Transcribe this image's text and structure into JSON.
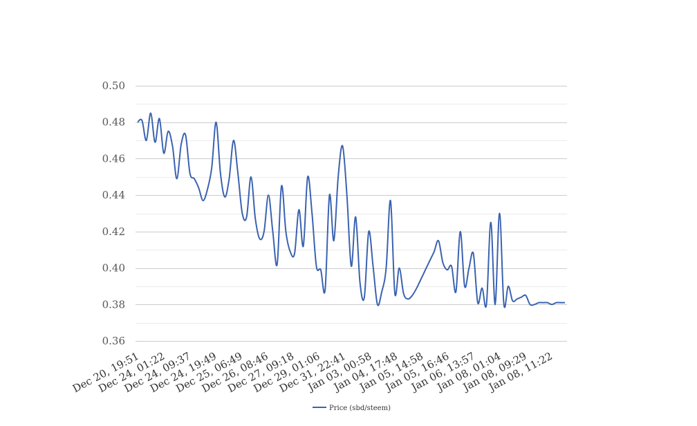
{
  "chart_data": {
    "type": "line",
    "title": "",
    "xlabel": "",
    "ylabel": "",
    "ylim": [
      0.36,
      0.5
    ],
    "y_major_ticks": [
      0.36,
      0.38,
      0.4,
      0.42,
      0.44,
      0.46,
      0.48,
      0.5
    ],
    "y_minor_ticks": [
      0.37,
      0.39,
      0.41,
      0.43,
      0.45,
      0.47,
      0.49
    ],
    "y_tick_labels": [
      "0.36",
      "0.38",
      "0.40",
      "0.42",
      "0.44",
      "0.46",
      "0.48",
      "0.50"
    ],
    "x_tick_labels": [
      "Dec 20, 19:51",
      "Dec 24, 01:22",
      "Dec 24, 09:37",
      "Dec 24, 19:49",
      "Dec 25, 06:49",
      "Dec 26, 08:46",
      "Dec 27, 09:18",
      "Dec 29, 01:06",
      "Dec 31, 22:41",
      "Jan 03, 00:58",
      "Jan 04, 17:48",
      "Jan 05, 14:58",
      "Jan 05, 16:46",
      "Jan 06, 13:57",
      "Jan 08, 01:04",
      "Jan 08, 09:29",
      "Jan 08, 11:22"
    ],
    "grid": true,
    "legend_position": "bottom-center",
    "series": [
      {
        "name": "Price (sbd/steem)",
        "color": "#3a62b0",
        "values": [
          0.48,
          0.481,
          0.47,
          0.485,
          0.469,
          0.482,
          0.463,
          0.475,
          0.467,
          0.449,
          0.468,
          0.473,
          0.452,
          0.449,
          0.444,
          0.437,
          0.443,
          0.455,
          0.48,
          0.452,
          0.439,
          0.449,
          0.47,
          0.452,
          0.43,
          0.428,
          0.45,
          0.427,
          0.416,
          0.42,
          0.44,
          0.42,
          0.402,
          0.445,
          0.42,
          0.409,
          0.408,
          0.432,
          0.412,
          0.45,
          0.43,
          0.401,
          0.399,
          0.388,
          0.44,
          0.415,
          0.45,
          0.467,
          0.44,
          0.401,
          0.428,
          0.392,
          0.384,
          0.42,
          0.401,
          0.38,
          0.387,
          0.4,
          0.437,
          0.386,
          0.4,
          0.386,
          0.383,
          0.385,
          0.389,
          0.394,
          0.399,
          0.404,
          0.409,
          0.415,
          0.403,
          0.399,
          0.401,
          0.387,
          0.42,
          0.39,
          0.4,
          0.408,
          0.381,
          0.389,
          0.38,
          0.425,
          0.38,
          0.43,
          0.38,
          0.39,
          0.382,
          0.383,
          0.384,
          0.385,
          0.38,
          0.38,
          0.381,
          0.381,
          0.381,
          0.38,
          0.381,
          0.381,
          0.381
        ]
      }
    ]
  }
}
